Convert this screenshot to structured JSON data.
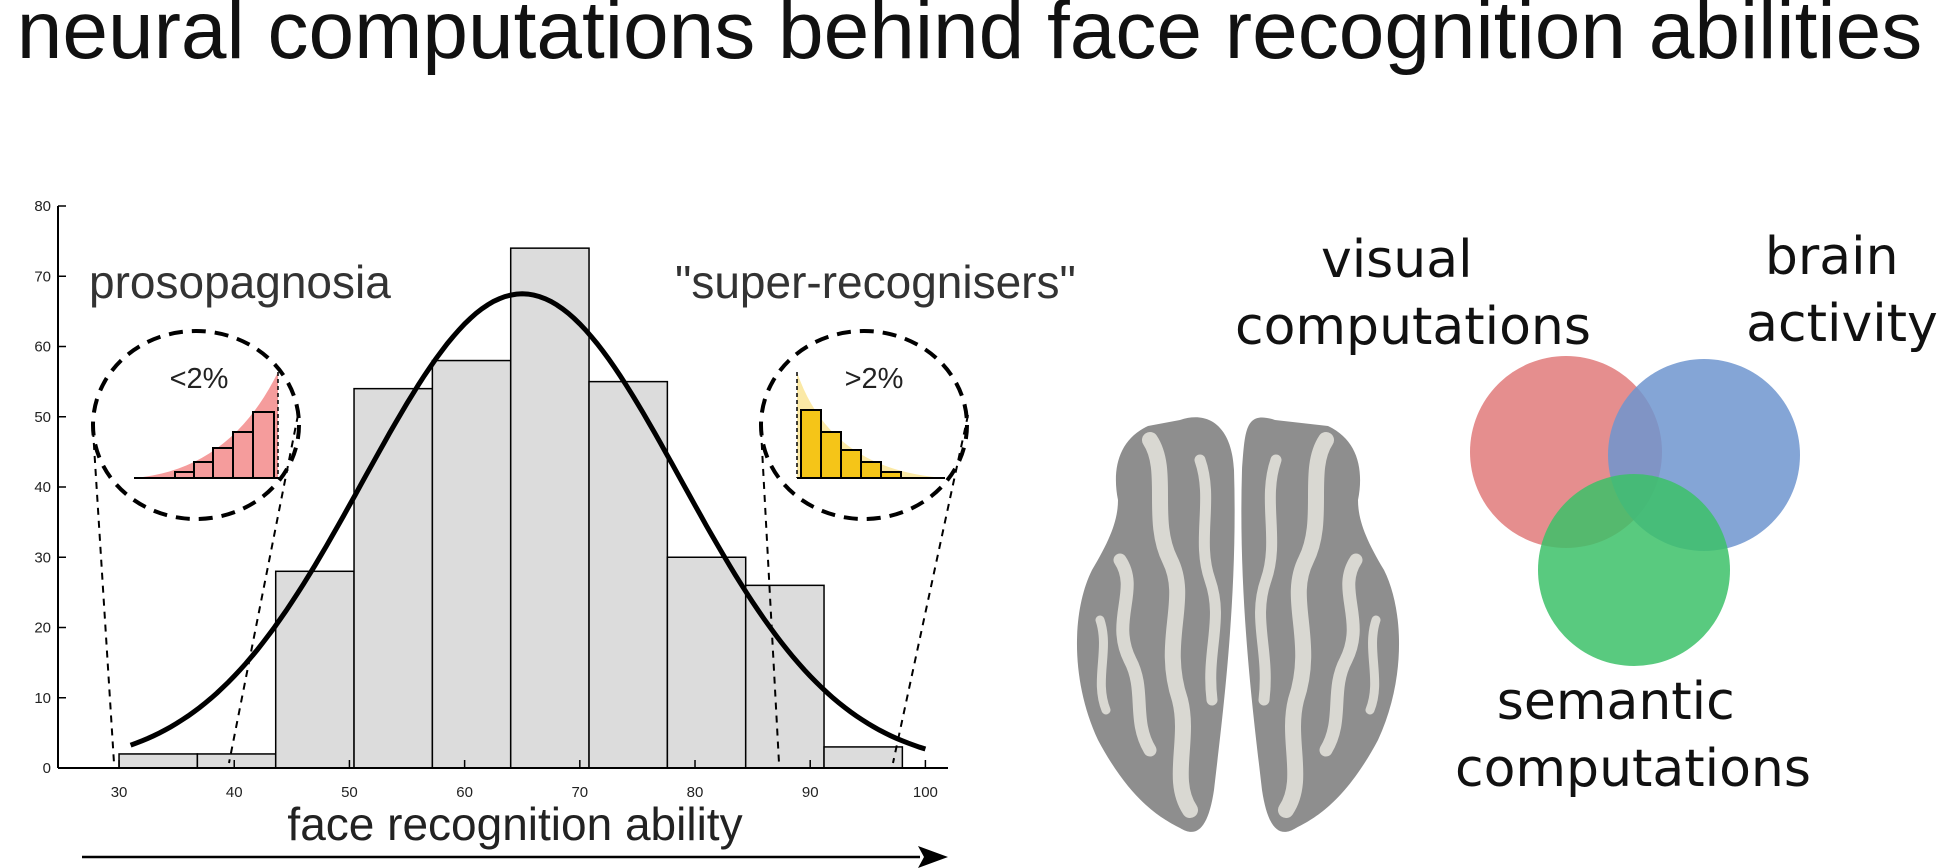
{
  "title": "neural computations behind face recognition abilities",
  "histogram": {
    "xlabel": "face recognition ability",
    "left_label": "prosopagnosia",
    "right_label": "\"super-recognisers\"",
    "left_inset_label": "<2%",
    "right_inset_label": ">2%",
    "colors": {
      "bars": "#dcdcdc",
      "left_tail": "#f59c9c",
      "right_tail": "#f5c518",
      "curve": "#000000"
    }
  },
  "chart_data": {
    "type": "bar",
    "x_ticks": [
      30,
      40,
      50,
      60,
      70,
      80,
      90,
      100
    ],
    "y_ticks": [
      0,
      10,
      20,
      30,
      40,
      50,
      60,
      70,
      80
    ],
    "xlim": [
      28,
      105
    ],
    "ylim": [
      0,
      80
    ],
    "bins": [
      {
        "from": 30,
        "to": 36.8,
        "count": 2
      },
      {
        "from": 36.8,
        "to": 43.6,
        "count": 2
      },
      {
        "from": 43.6,
        "to": 50.4,
        "count": 28
      },
      {
        "from": 50.4,
        "to": 57.2,
        "count": 54
      },
      {
        "from": 57.2,
        "to": 64.0,
        "count": 58
      },
      {
        "from": 64.0,
        "to": 70.8,
        "count": 74
      },
      {
        "from": 70.8,
        "to": 77.6,
        "count": 55
      },
      {
        "from": 77.6,
        "to": 84.4,
        "count": 30
      },
      {
        "from": 84.4,
        "to": 91.2,
        "count": 26
      },
      {
        "from": 91.2,
        "to": 98.0,
        "count": 3
      }
    ],
    "fit_curve": {
      "type": "normal",
      "mean": 65,
      "peak": 67.5,
      "sd": 13.8,
      "x_range": [
        31,
        100
      ]
    }
  },
  "venn": {
    "visual": "visual computations",
    "brain": "brain activity",
    "semantic": "semantic computations",
    "visual_lines": [
      "visual",
      "computations"
    ],
    "brain_lines": [
      "brain",
      "activity"
    ],
    "semantic_lines": [
      "semantic",
      "computations"
    ],
    "colors": {
      "visual": "#e07a7a",
      "brain": "#6f95cf",
      "semantic": "#3cc168"
    }
  }
}
